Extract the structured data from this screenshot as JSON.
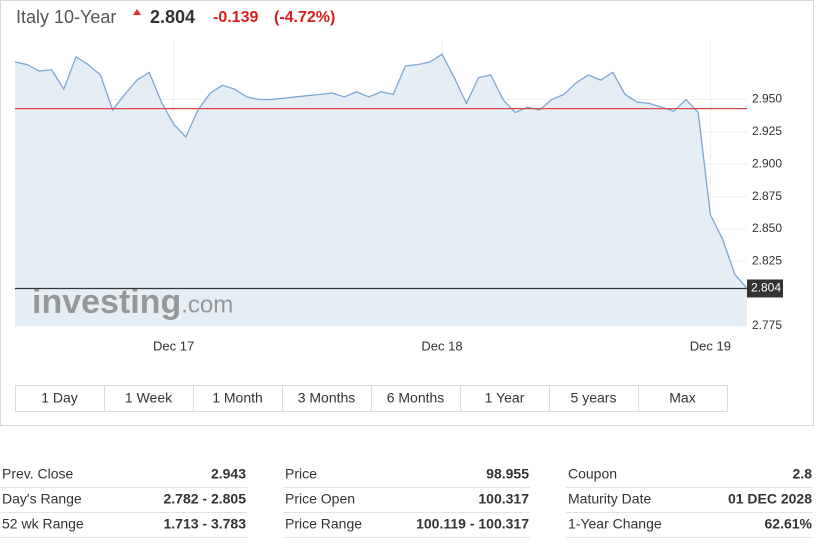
{
  "header": {
    "title": "Italy 10-Year",
    "price": 2.804,
    "change": -0.139,
    "change_pct": "(-4.72%)"
  },
  "chart_data": {
    "type": "line",
    "categories": [
      null,
      null,
      null,
      null,
      null,
      null,
      null,
      null,
      null,
      null,
      null,
      null,
      null,
      "Dec 17",
      null,
      null,
      null,
      null,
      null,
      null,
      null,
      null,
      null,
      null,
      null,
      null,
      null,
      null,
      null,
      null,
      null,
      null,
      null,
      null,
      null,
      "Dec 18",
      null,
      null,
      null,
      null,
      null,
      null,
      null,
      null,
      null,
      null,
      null,
      null,
      null,
      null,
      null,
      null,
      null,
      null,
      null,
      null,
      null,
      "Dec 19",
      null,
      null,
      null
    ],
    "series": [
      {
        "name": "Italy 10-Year",
        "color": "#7ba6d4",
        "values": [
          2.979,
          2.977,
          2.972,
          2.973,
          2.958,
          2.983,
          2.977,
          2.969,
          2.942,
          2.954,
          2.965,
          2.971,
          2.948,
          2.931,
          2.921,
          2.942,
          2.955,
          2.961,
          2.958,
          2.952,
          2.95,
          2.95,
          2.951,
          2.952,
          2.953,
          2.954,
          2.955,
          2.952,
          2.956,
          2.952,
          2.956,
          2.954,
          2.976,
          2.977,
          2.979,
          2.985,
          2.967,
          2.947,
          2.967,
          2.969,
          2.95,
          2.94,
          2.944,
          2.942,
          2.95,
          2.954,
          2.963,
          2.969,
          2.965,
          2.971,
          2.954,
          2.948,
          2.947,
          2.944,
          2.941,
          2.95,
          2.94,
          2.861,
          2.842,
          2.815,
          2.804
        ]
      }
    ],
    "ylim": [
      2.775,
      2.996
    ],
    "yticks": [
      {
        "value": 2.95,
        "label": "2.950"
      },
      2.925,
      {
        "value": 2.9,
        "label": "2.900"
      },
      2.875,
      {
        "value": 2.85,
        "label": "2.850"
      },
      2.825,
      2.775
    ],
    "grid": true,
    "watermark_brand": "investing",
    "watermark_suffix": ".com"
  },
  "buttons": [
    "1 Day",
    "1 Week",
    "1 Month",
    "3 Months",
    "6 Months",
    "1 Year",
    "5 years",
    "Max"
  ],
  "stats": {
    "prev_close_label": "Prev. Close",
    "prev_close": 2.943,
    "cells": [
      [
        "Day's Range",
        "2.782 - 2.805"
      ],
      [
        "52 wk Range",
        "1.713 - 3.783"
      ],
      [
        "Price",
        "98.955"
      ],
      [
        "Price Open",
        "100.317"
      ],
      [
        "Price Range",
        "100.119 - 100.317"
      ],
      [
        "Coupon",
        "2.8"
      ],
      [
        "Maturity Date",
        "01 DEC 2028"
      ],
      [
        "1-Year Change",
        "62.61%"
      ]
    ]
  }
}
